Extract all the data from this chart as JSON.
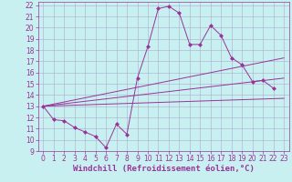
{
  "background_color": "#c8f0f0",
  "grid_color": "#aaaacc",
  "line_color": "#993399",
  "xlabel": "Windchill (Refroidissement éolien,°C)",
  "xlim": [
    -0.5,
    23.5
  ],
  "ylim": [
    9,
    22.3
  ],
  "yticks": [
    9,
    10,
    11,
    12,
    13,
    14,
    15,
    16,
    17,
    18,
    19,
    20,
    21,
    22
  ],
  "xticks": [
    0,
    1,
    2,
    3,
    4,
    5,
    6,
    7,
    8,
    9,
    10,
    11,
    12,
    13,
    14,
    15,
    16,
    17,
    18,
    19,
    20,
    21,
    22,
    23
  ],
  "curve_x": [
    0,
    1,
    2,
    3,
    4,
    5,
    6,
    7,
    8,
    9,
    10,
    11,
    12,
    13,
    14,
    15,
    16,
    17,
    18,
    19,
    20,
    21,
    22
  ],
  "curve_y": [
    13.0,
    11.8,
    11.7,
    11.1,
    10.7,
    10.3,
    9.3,
    11.4,
    10.5,
    15.5,
    18.3,
    21.7,
    21.9,
    21.3,
    18.5,
    18.5,
    20.2,
    19.3,
    17.3,
    16.7,
    15.2,
    15.3,
    14.6
  ],
  "line1_x": [
    0,
    23
  ],
  "line1_y": [
    13.0,
    13.7
  ],
  "line2_x": [
    0,
    23
  ],
  "line2_y": [
    13.0,
    15.5
  ],
  "line3_x": [
    0,
    23
  ],
  "line3_y": [
    13.0,
    17.3
  ],
  "markersize": 2.5,
  "fontsize_label": 6.5,
  "fontsize_tick": 5.5
}
